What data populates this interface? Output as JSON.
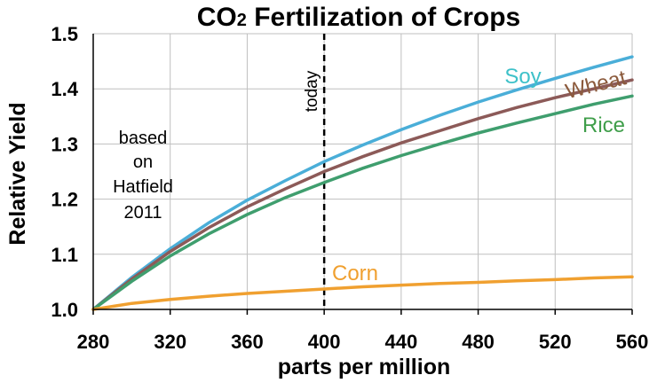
{
  "chart_data": {
    "type": "line",
    "title_main": "CO",
    "title_sub": "2",
    "title_rest": " Fertilization of Crops",
    "xlabel": "parts per million",
    "ylabel": "Relative Yield",
    "xlim": [
      280,
      560
    ],
    "ylim": [
      1.0,
      1.5
    ],
    "x_ticks": [
      280,
      320,
      360,
      400,
      440,
      480,
      520,
      560
    ],
    "y_ticks": [
      "1.0",
      "1.1",
      "1.2",
      "1.3",
      "1.4",
      "1.5"
    ],
    "grid": true,
    "marker_x": 400,
    "marker_label": "today",
    "note_lines": [
      "based",
      "on",
      "Hatfield",
      "2011"
    ],
    "x": [
      280,
      300,
      320,
      340,
      360,
      380,
      400,
      420,
      440,
      460,
      480,
      500,
      520,
      540,
      560
    ],
    "series": [
      {
        "name": "Soy",
        "color": "#4aaed8",
        "label_color": "#3ec1c9",
        "values": [
          1.0,
          1.058,
          1.11,
          1.157,
          1.198,
          1.234,
          1.268,
          1.298,
          1.326,
          1.352,
          1.376,
          1.398,
          1.419,
          1.439,
          1.458
        ]
      },
      {
        "name": "Wheat",
        "color": "#8c5a58",
        "label_color": "#8b5a3c",
        "values": [
          1.0,
          1.055,
          1.105,
          1.148,
          1.186,
          1.219,
          1.25,
          1.277,
          1.302,
          1.324,
          1.346,
          1.366,
          1.384,
          1.4,
          1.416
        ]
      },
      {
        "name": "Rice",
        "color": "#3f9e6e",
        "label_color": "#3f9e4a",
        "values": [
          1.0,
          1.051,
          1.097,
          1.137,
          1.172,
          1.203,
          1.23,
          1.256,
          1.279,
          1.3,
          1.32,
          1.338,
          1.355,
          1.372,
          1.387
        ]
      },
      {
        "name": "Corn",
        "color": "#f0a030",
        "label_color": "#f0a030",
        "values": [
          1.0,
          1.011,
          1.018,
          1.024,
          1.029,
          1.033,
          1.037,
          1.041,
          1.044,
          1.047,
          1.049,
          1.052,
          1.054,
          1.057,
          1.059
        ]
      }
    ]
  }
}
